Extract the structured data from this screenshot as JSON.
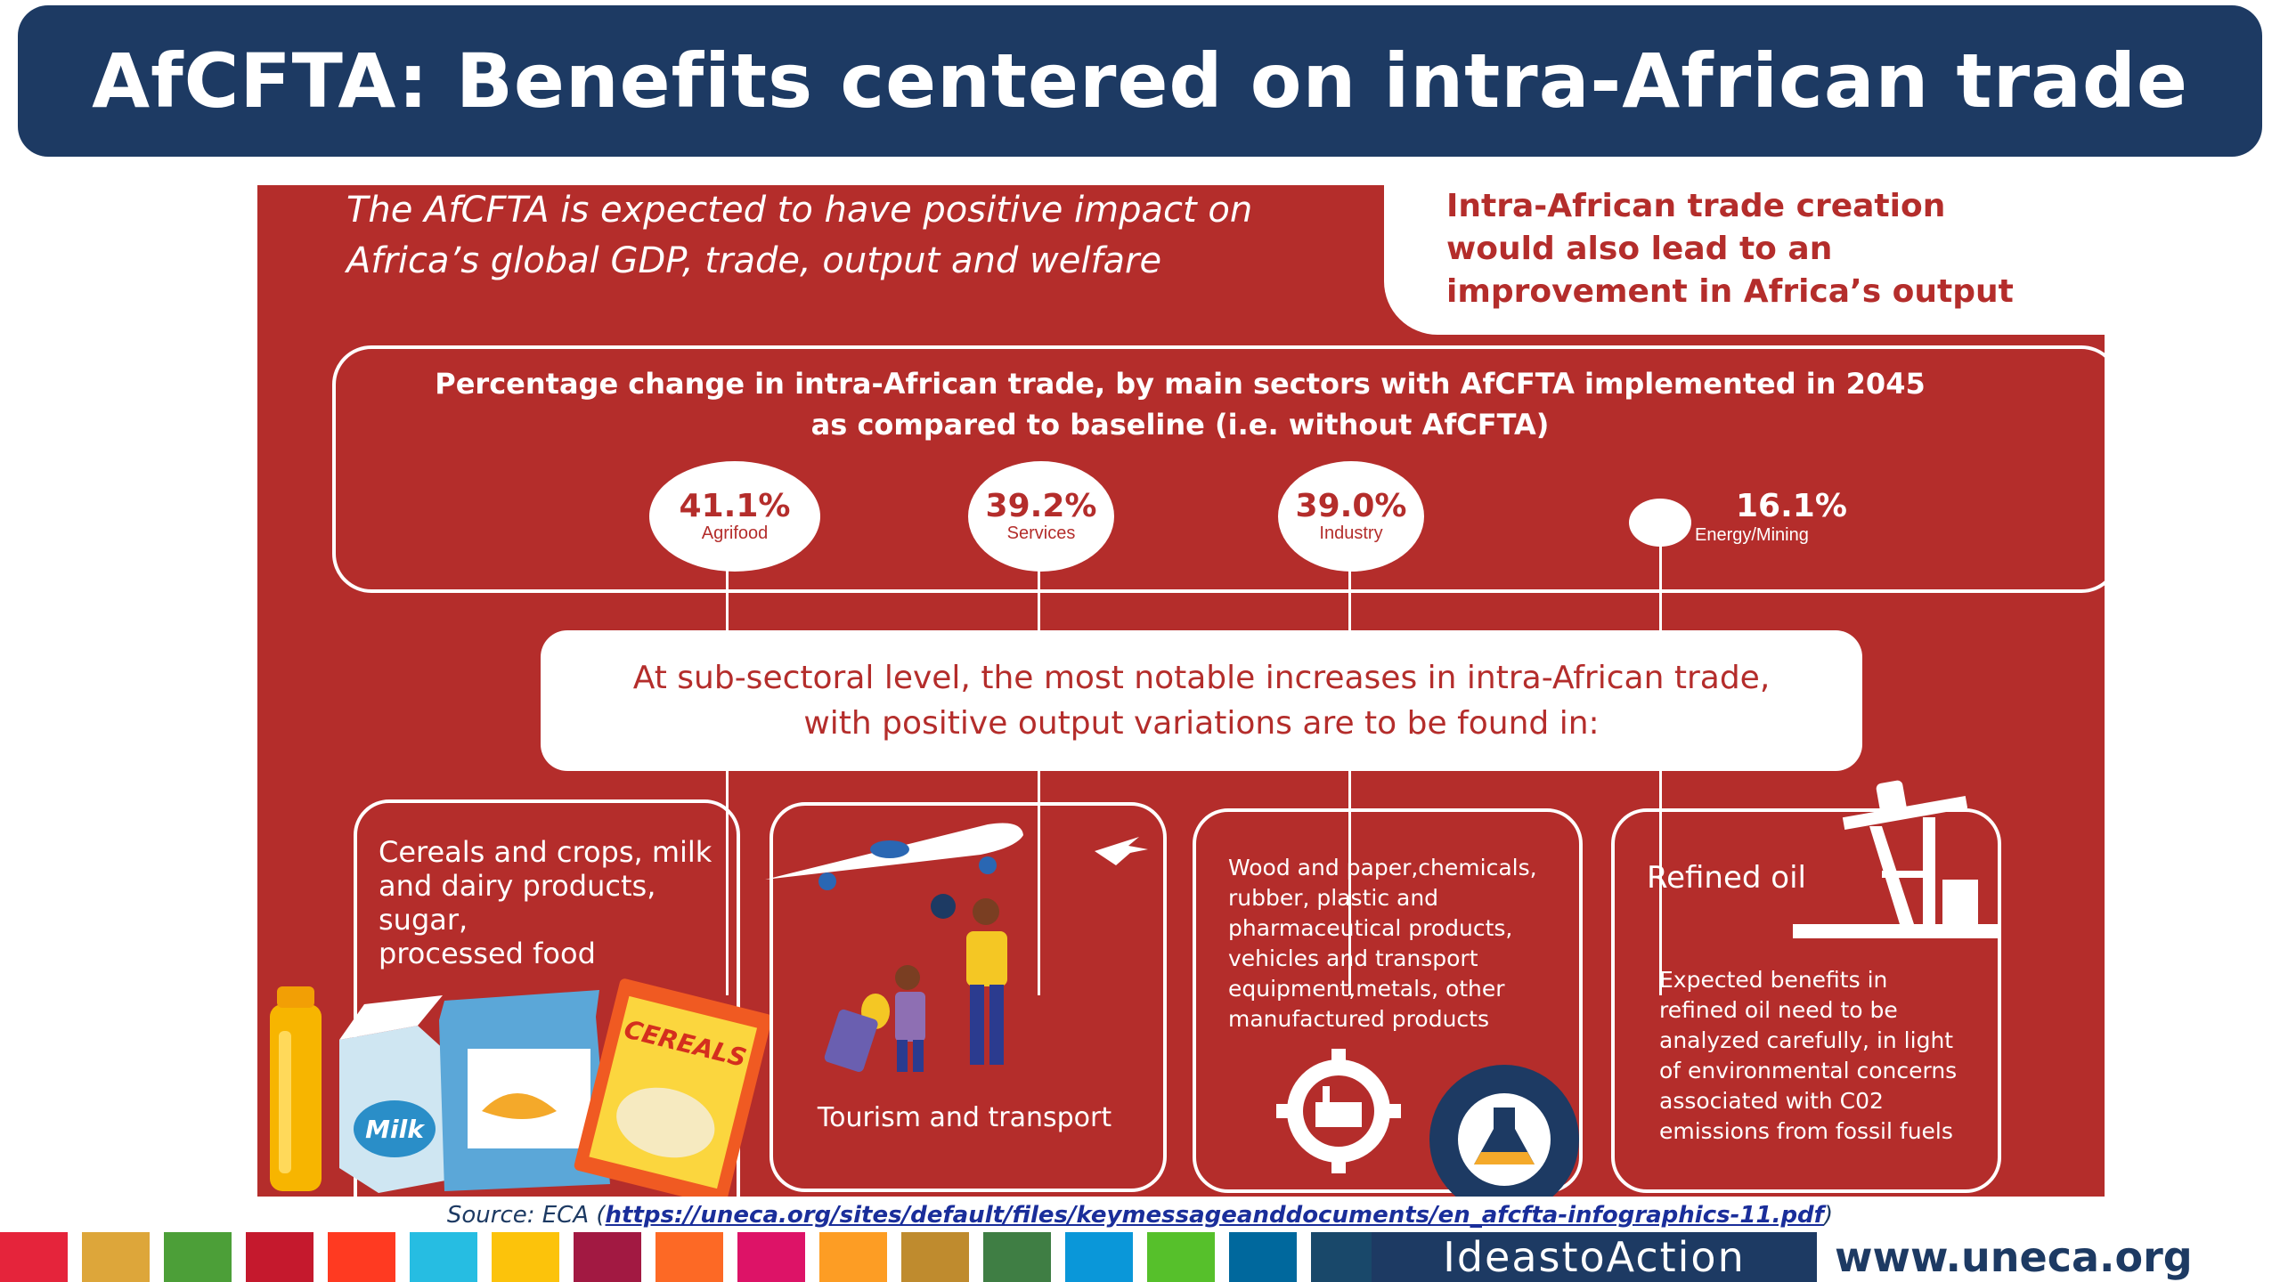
{
  "title": "AfCFTA: Benefits centered on intra-African trade",
  "intro": [
    "The AfCFTA is expected to have positive impact on",
    "Africa’s global GDP, trade, output and welfare"
  ],
  "callout": [
    "Intra-African trade creation",
    "would also lead to an",
    "improvement in Africa’s output"
  ],
  "headline": [
    "Percentage change in intra-African trade, by main sectors with AfCFTA implemented in 2045",
    "as compared to baseline (i.e. without AfCFTA)"
  ],
  "sectors": [
    {
      "value": "41.1%",
      "label": "Agrifood"
    },
    {
      "value": "39.2%",
      "label": "Services"
    },
    {
      "value": "39.0%",
      "label": "Industry"
    },
    {
      "value": "16.1%",
      "label": "Energy/Mining"
    }
  ],
  "subsector_intro": "At sub-sectoral level, the most notable increases in intra-African trade, with positive output variations are to be found in:",
  "boxes": {
    "agrifood": [
      "Cereals and crops, milk",
      "and dairy products, sugar,",
      "processed food"
    ],
    "services": "Tourism and transport",
    "industry": [
      "Wood and paper,chemicals,",
      "rubber, plastic and",
      "pharmaceutical products,",
      "vehicles and transport",
      "equipment,metals, other",
      "manufactured products"
    ],
    "energy_title": "Refined oil",
    "energy_text": [
      "Expected benefits in",
      "refined oil need to be",
      "analyzed carefully, in light",
      "of environmental concerns",
      "associated with C02",
      "emissions from fossil fuels"
    ]
  },
  "illustrations": {
    "milk": "Milk",
    "cereals": "CEREALS"
  },
  "source": {
    "prefix": "Source: ECA (",
    "link": "https://uneca.org/sites/default/files/keymessageanddocuments/en_afcfta-infographics-11.pdf",
    "suffix": ")"
  },
  "footer": {
    "slogan": "IdeastoAction",
    "website": "www.uneca.org"
  },
  "colors": {
    "navy": "#1d3a63",
    "panel_red": "#b42d2b"
  },
  "strip_colors": [
    "#e5243b",
    "#dda63a",
    "#4c9f38",
    "#c5192d",
    "#ff3a21",
    "#26bde2",
    "#fcc30b",
    "#a21942",
    "#fd6925",
    "#dd1367",
    "#fd9d24",
    "#bf8b2e",
    "#3f7e44",
    "#0a97d9",
    "#56c02b",
    "#00689d",
    "#19486a"
  ]
}
